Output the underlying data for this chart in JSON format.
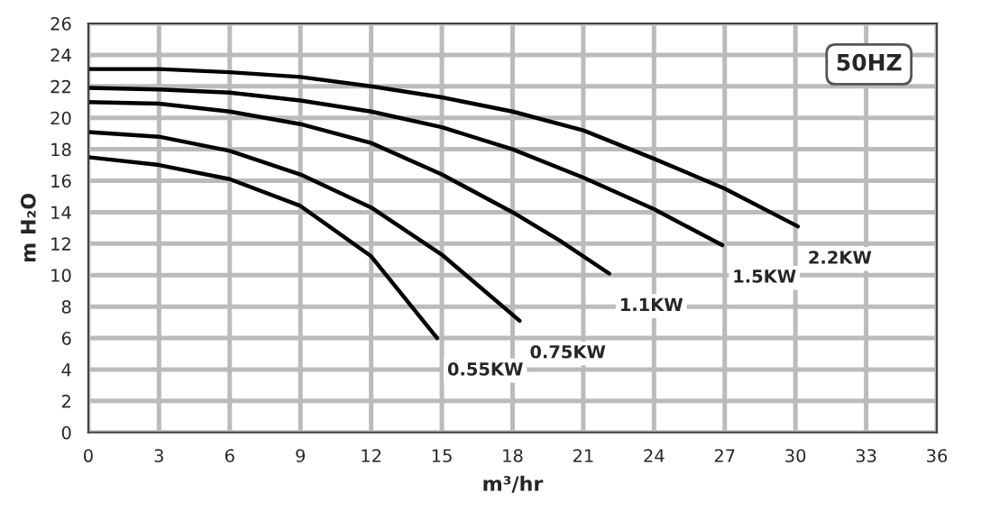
{
  "chart_data": {
    "type": "line",
    "xlabel": "m³/hr",
    "ylabel": "m H₂O",
    "xlim": [
      0,
      36
    ],
    "xticks": [
      0,
      3,
      6,
      9,
      12,
      15,
      18,
      21,
      24,
      27,
      30,
      33,
      36
    ],
    "ylim": [
      0,
      26
    ],
    "yticks": [
      0,
      2,
      4,
      6,
      8,
      10,
      12,
      14,
      16,
      18,
      20,
      22,
      24,
      26
    ],
    "grid": true,
    "legend": false,
    "marker": "none",
    "line_style": "solid",
    "annotations": [
      "50HZ"
    ],
    "series": [
      {
        "name": "0.55KW",
        "color": "#000000",
        "x": [
          0,
          3,
          6,
          9,
          12,
          14.8
        ],
        "values": [
          17.5,
          17.0,
          16.1,
          14.4,
          11.2,
          6.0
        ]
      },
      {
        "name": "0.75KW",
        "color": "#000000",
        "x": [
          0,
          3,
          6,
          9,
          12,
          15,
          18.3
        ],
        "values": [
          19.1,
          18.8,
          17.9,
          16.4,
          14.3,
          11.3,
          7.1
        ]
      },
      {
        "name": "1.1KW",
        "color": "#000000",
        "x": [
          0,
          3,
          6,
          9,
          12,
          15,
          18,
          20,
          22.1
        ],
        "values": [
          21.0,
          20.9,
          20.4,
          19.6,
          18.4,
          16.4,
          14.0,
          12.2,
          10.1
        ]
      },
      {
        "name": "1.5KW",
        "color": "#000000",
        "x": [
          0,
          3,
          6,
          9,
          12,
          15,
          18,
          21,
          24,
          26.9
        ],
        "values": [
          21.9,
          21.8,
          21.6,
          21.1,
          20.4,
          19.4,
          18.0,
          16.2,
          14.2,
          11.9
        ]
      },
      {
        "name": "2.2KW",
        "color": "#000000",
        "x": [
          0,
          3,
          6,
          9,
          12,
          15,
          18,
          21,
          24,
          27,
          30.1
        ],
        "values": [
          23.1,
          23.1,
          22.9,
          22.6,
          22.0,
          21.3,
          20.4,
          19.2,
          17.4,
          15.5,
          13.1
        ]
      }
    ]
  }
}
